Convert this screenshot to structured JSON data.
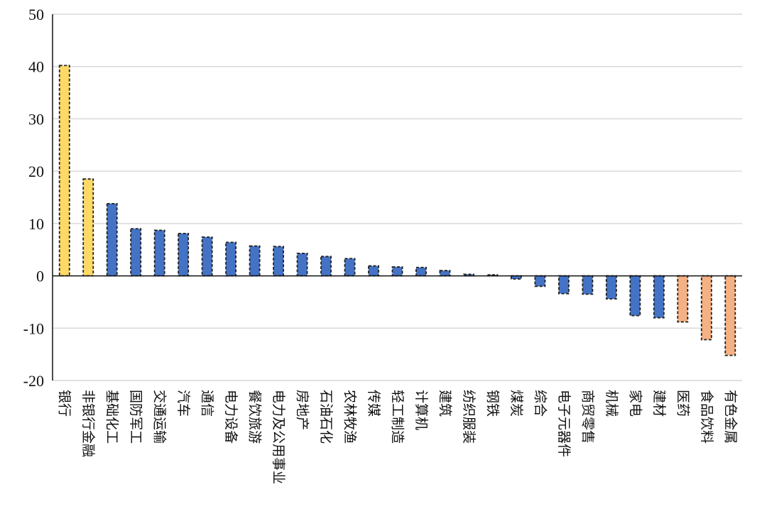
{
  "chart_data": {
    "type": "bar",
    "title": "",
    "xlabel": "",
    "ylabel": "",
    "ylim": [
      -20,
      50
    ],
    "yticks": [
      "50",
      "40",
      "30",
      "20",
      "10",
      "0",
      "-10",
      "-20"
    ],
    "grid": true,
    "categories": [
      "银行",
      "非银行金融",
      "基础化工",
      "国防军工",
      "交通运输",
      "汽车",
      "通信",
      "电力设备",
      "餐饮旅游",
      "电力及公用事业",
      "房地产",
      "石油石化",
      "农林牧渔",
      "传媒",
      "轻工制造",
      "计算机",
      "建筑",
      "纺织服装",
      "钢铁",
      "煤炭",
      "综合",
      "电子元器件",
      "商贸零售",
      "机械",
      "家电",
      "建材",
      "医药",
      "食品饮料",
      "有色金属"
    ],
    "values": [
      40.2,
      18.5,
      13.8,
      9.0,
      8.7,
      8.1,
      7.4,
      6.4,
      5.7,
      5.6,
      4.3,
      3.7,
      3.3,
      1.9,
      1.7,
      1.6,
      1.0,
      0.3,
      0.2,
      -0.6,
      -2.0,
      -3.4,
      -3.5,
      -4.4,
      -7.6,
      -8.0,
      -8.8,
      -12.2,
      -15.2
    ],
    "colors": [
      "#ffd966",
      "#ffd966",
      "#4472c4",
      "#4472c4",
      "#4472c4",
      "#4472c4",
      "#4472c4",
      "#4472c4",
      "#4472c4",
      "#4472c4",
      "#4472c4",
      "#4472c4",
      "#4472c4",
      "#4472c4",
      "#4472c4",
      "#4472c4",
      "#4472c4",
      "#4472c4",
      "#4472c4",
      "#4472c4",
      "#4472c4",
      "#4472c4",
      "#4472c4",
      "#4472c4",
      "#4472c4",
      "#4472c4",
      "#f4b183",
      "#f4b183",
      "#f4b183"
    ],
    "bar_border_color": "#222222",
    "grid_color": "#d9d9d9"
  }
}
